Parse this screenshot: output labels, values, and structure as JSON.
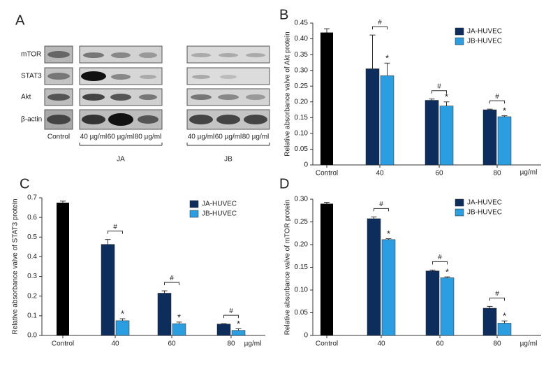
{
  "panel_a": {
    "panel": "A",
    "rows": [
      "mTOR",
      "STAT3",
      "Akt",
      "β-actin"
    ],
    "lanes": [
      "Control",
      "40 µg/ml",
      "60 µg/ml",
      "80 µg/ml",
      "40 µg/ml",
      "60 µg/ml",
      "80 µg/ml"
    ],
    "groups": [
      "JA",
      "JB"
    ]
  },
  "chart_data": [
    {
      "type": "bar",
      "panel": "B",
      "y_label": "Relative absorbance valve of Akt protein",
      "x_unit": "µg/ml",
      "categories": [
        "Control",
        "40",
        "60",
        "80"
      ],
      "control": {
        "color": "#000000",
        "value": 0.42,
        "error": 0.012
      },
      "series": [
        {
          "name": "JA-HUVEC",
          "color": "#0d2e5c",
          "values": [
            null,
            0.305,
            0.205,
            0.175
          ],
          "errors": [
            null,
            0.107,
            0.004,
            0.002
          ]
        },
        {
          "name": "JB-HUVEC",
          "color": "#2a9ee0",
          "values": [
            null,
            0.283,
            0.187,
            0.153
          ],
          "errors": [
            null,
            0.04,
            0.013,
            0.003
          ],
          "marks": [
            null,
            "*",
            "*",
            "*"
          ]
        }
      ],
      "pair_marks": [
        null,
        "#",
        "#",
        "#"
      ],
      "ylim": [
        0,
        0.45
      ],
      "yticks": [
        0,
        0.05,
        {
          "value": 0.1,
          "label": "0.10"
        },
        0.15,
        {
          "value": 0.2,
          "label": "0.20"
        },
        0.25,
        {
          "value": 0.3,
          "label": "0.30"
        },
        0.35,
        {
          "value": 0.4,
          "label": "0.40"
        },
        0.45
      ],
      "legend": "upper right"
    },
    {
      "type": "bar",
      "panel": "C",
      "y_label": "Relative absorbance valve of STAT3 protein",
      "x_unit": "µg/ml",
      "categories": [
        "Control",
        "40",
        "60",
        "80"
      ],
      "control": {
        "color": "#000000",
        "value": 0.675,
        "error": 0.008
      },
      "series": [
        {
          "name": "JA-HUVEC",
          "color": "#0d2e5c",
          "values": [
            null,
            0.463,
            0.215,
            0.058
          ],
          "errors": [
            null,
            0.025,
            0.012,
            0.002
          ]
        },
        {
          "name": "JB-HUVEC",
          "color": "#2a9ee0",
          "values": [
            null,
            0.075,
            0.06,
            0.026
          ],
          "errors": [
            null,
            0.01,
            0.008,
            0.008
          ],
          "marks": [
            null,
            "*",
            "*",
            "*"
          ]
        }
      ],
      "pair_marks": [
        null,
        "#",
        "#",
        "#"
      ],
      "ylim": [
        0,
        0.7
      ],
      "yticks": [
        {
          "value": 0,
          "label": "0.0"
        },
        0.1,
        0.2,
        0.3,
        0.4,
        0.5,
        0.6,
        0.7
      ],
      "legend": "upper right"
    },
    {
      "type": "bar",
      "panel": "D",
      "y_label": "Relative absorbance valve of mTOR protein",
      "x_unit": "µg/ml",
      "categories": [
        "Control",
        "40",
        "60",
        "80"
      ],
      "control": {
        "color": "#000000",
        "value": 0.29,
        "error": 0.003
      },
      "series": [
        {
          "name": "JA-HUVEC",
          "color": "#0d2e5c",
          "values": [
            null,
            0.257,
            0.142,
            0.06
          ],
          "errors": [
            null,
            0.004,
            0.002,
            0.004
          ]
        },
        {
          "name": "JB-HUVEC",
          "color": "#2a9ee0",
          "values": [
            null,
            0.211,
            0.127,
            0.027
          ],
          "errors": [
            null,
            0.002,
            0.002,
            0.005
          ],
          "marks": [
            null,
            "*",
            "*",
            "*"
          ]
        }
      ],
      "pair_marks": [
        null,
        "#",
        "#",
        "#"
      ],
      "ylim": [
        0,
        0.3
      ],
      "yticks": [
        0,
        0.05,
        {
          "value": 0.1,
          "label": "0.10"
        },
        0.15,
        {
          "value": 0.2,
          "label": "0.20"
        },
        0.25,
        {
          "value": 0.3,
          "label": "0.30"
        }
      ],
      "legend": "upper right"
    }
  ]
}
